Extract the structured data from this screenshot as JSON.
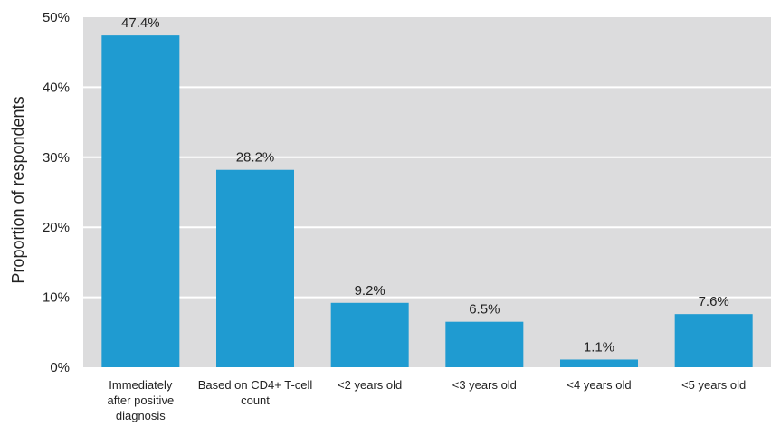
{
  "chart_data": {
    "type": "bar",
    "ylabel": "Proportion of respondents",
    "ylim": [
      0,
      50
    ],
    "yticks": [
      "0%",
      "10%",
      "20%",
      "30%",
      "40%",
      "50%"
    ],
    "grid": true,
    "categories": [
      "Immediately after positive diagnosis",
      "Based on CD4+ T-cell count",
      "<2 years old",
      "<3 years old",
      "<4 years old",
      "<5 years old"
    ],
    "category_lines": [
      [
        "Immediately",
        "after positive",
        "diagnosis"
      ],
      [
        "Based on CD4+ T-cell",
        "count"
      ],
      [
        "<2 years old"
      ],
      [
        "<3 years old"
      ],
      [
        "<4 years old"
      ],
      [
        "<5 years old"
      ]
    ],
    "values": [
      47.4,
      28.2,
      9.2,
      6.5,
      1.1,
      7.6
    ],
    "value_labels": [
      "47.4%",
      "28.2%",
      "9.2%",
      "6.5%",
      "1.1%",
      "7.6%"
    ],
    "colors": {
      "bar": "#1f9bd1",
      "plot_bg": "#dcdcdd",
      "grid": "#ffffff"
    }
  }
}
